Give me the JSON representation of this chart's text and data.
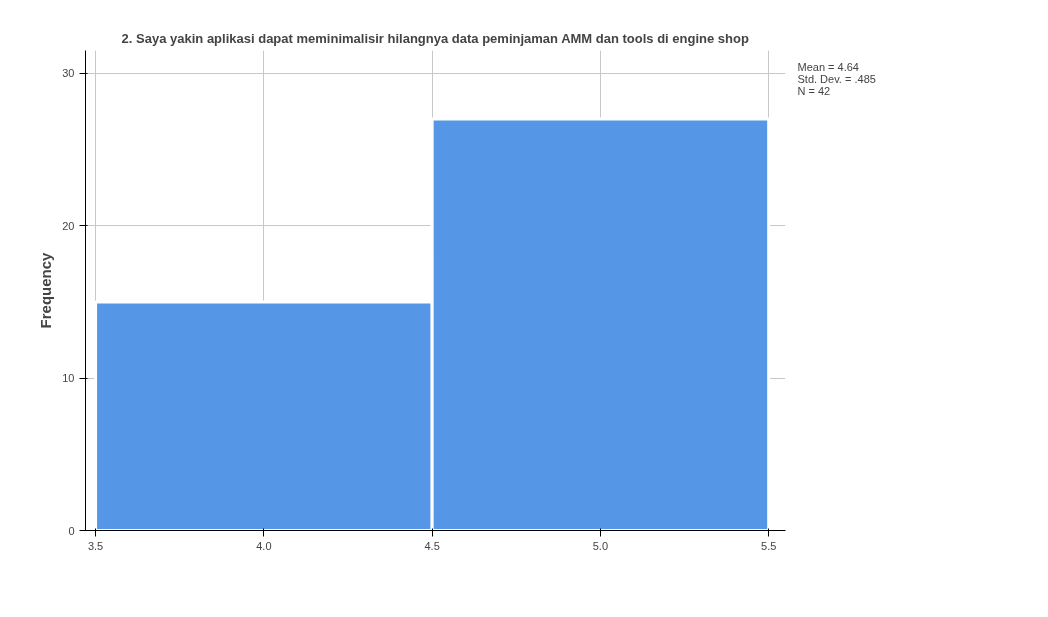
{
  "chart_data": {
    "type": "histogram",
    "title": "2. Saya yakin aplikasi dapat meminimalisir hilangnya data peminjaman AMM dan tools di engine shop",
    "ylabel": "Frequency",
    "bins": [
      3.5,
      4.5,
      5.5
    ],
    "values": [
      15,
      27
    ],
    "color": "#5596e6",
    "xlim": [
      3.47,
      5.55
    ],
    "ylim": [
      0,
      31.5
    ],
    "xticks": [
      {
        "value": 3.5,
        "label": "3.5"
      },
      {
        "value": 4.0,
        "label": "4.0"
      },
      {
        "value": 4.5,
        "label": "4.5"
      },
      {
        "value": 5.0,
        "label": "5.0"
      },
      {
        "value": 5.5,
        "label": "5.5"
      }
    ],
    "yticks": [
      0,
      10,
      20,
      30
    ],
    "grid": true,
    "annotations": [
      "Mean = 4.64",
      "Std. Dev. = .485",
      "N = 42"
    ]
  }
}
